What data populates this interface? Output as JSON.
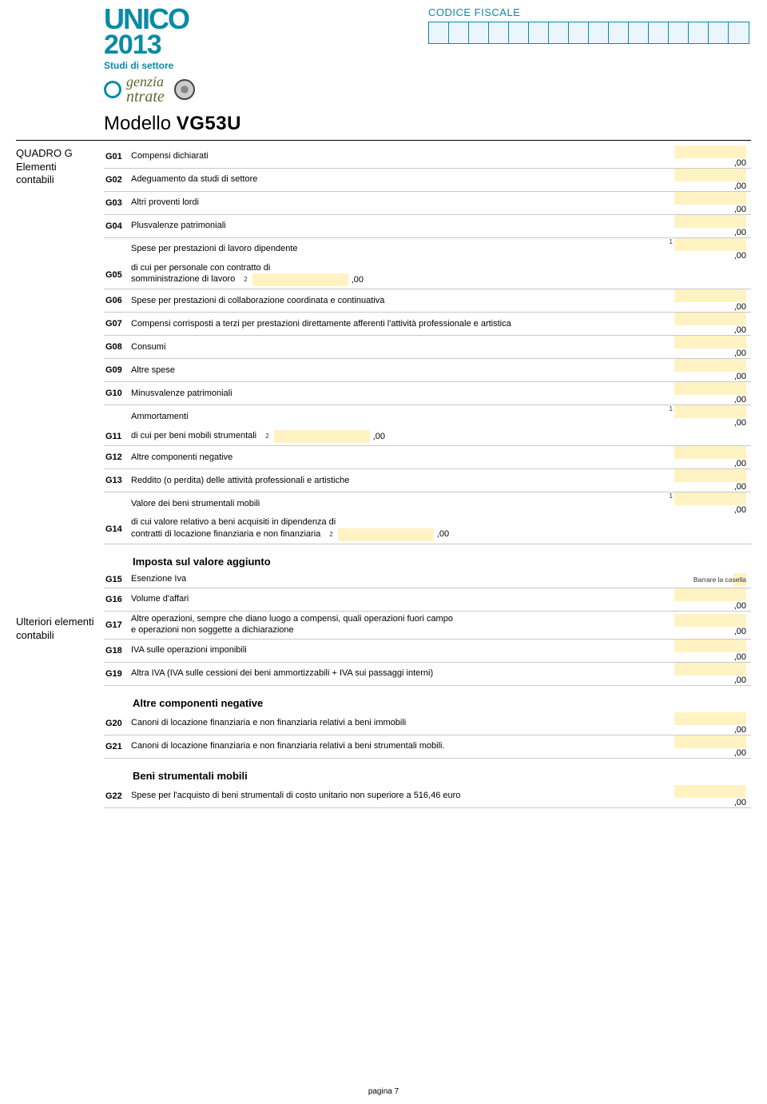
{
  "colors": {
    "brand": "#0b8aa6",
    "field_bg": "#fff3c4",
    "rule": "#c9c9c9",
    "text": "#000000"
  },
  "header": {
    "brand": "UNICO",
    "year": "2013",
    "subtitle": "Studi di settore",
    "agenzia_line1": "genzia",
    "agenzia_line2": "ntrate",
    "codice_label": "CODICE FISCALE",
    "codice_cells": 16,
    "modello_prefix": "Modello",
    "modello_code": "VG53U"
  },
  "sidebar": {
    "sec1_title": "QUADRO G",
    "sec1_sub1": "Elementi",
    "sec1_sub2": "contabili",
    "sec2_line1": "Ulteriori elementi",
    "sec2_line2": "contabili"
  },
  "amount_suffix": ",00",
  "rows": {
    "g01": {
      "code": "G01",
      "desc": "Compensi dichiarati"
    },
    "g02": {
      "code": "G02",
      "desc": "Adeguamento da studi di settore"
    },
    "g03": {
      "code": "G03",
      "desc": "Altri proventi lordi"
    },
    "g04": {
      "code": "G04",
      "desc": "Plusvalenze patrimoniali"
    },
    "g05": {
      "code": "G05",
      "line1": "Spese per prestazioni di lavoro dipendente",
      "line2a": "di cui per personale con contratto di",
      "line2b": "somministrazione di lavoro",
      "sup1": "1",
      "sup2": "2"
    },
    "g06": {
      "code": "G06",
      "desc": "Spese per prestazioni di collaborazione coordinata e continuativa"
    },
    "g07": {
      "code": "G07",
      "desc": "Compensi corrisposti a terzi per prestazioni direttamente afferenti l'attività professionale e artistica"
    },
    "g08": {
      "code": "G08",
      "desc": "Consumi"
    },
    "g09": {
      "code": "G09",
      "desc": "Altre spese"
    },
    "g10": {
      "code": "G10",
      "desc": "Minusvalenze patrimoniali"
    },
    "g11": {
      "code": "G11",
      "line1": "Ammortamenti",
      "line2": "di cui per beni mobili strumentali",
      "sup1": "1",
      "sup2": "2"
    },
    "g12": {
      "code": "G12",
      "desc": "Altre componenti negative"
    },
    "g13": {
      "code": "G13",
      "desc": "Reddito (o perdita) delle attività professionali e artistiche"
    },
    "g14": {
      "code": "G14",
      "line1": "Valore dei beni strumentali mobili",
      "line2a": "di cui valore relativo a beni acquisiti in dipendenza di",
      "line2b": "contratti di locazione finanziaria e non finanziaria",
      "sup1": "1",
      "sup2": "2"
    }
  },
  "sections": {
    "iva_title": "Imposta sul valore aggiunto",
    "g15": {
      "code": "G15",
      "desc": "Esenzione Iva",
      "note": "Barrare la casella"
    },
    "g16": {
      "code": "G16",
      "desc": "Volume d'affari"
    },
    "g17": {
      "code": "G17",
      "line1": "Altre operazioni, sempre che diano luogo a compensi, quali operazioni fuori campo",
      "line2": "e operazioni non soggette a dichiarazione"
    },
    "g18": {
      "code": "G18",
      "desc": "IVA sulle operazioni imponibili"
    },
    "g19": {
      "code": "G19",
      "desc": "Altra IVA (IVA sulle cessioni dei beni ammortizzabili + IVA sui passaggi interni)"
    },
    "neg_title": "Altre componenti negative",
    "g20": {
      "code": "G20",
      "desc": "Canoni di locazione finanziaria e non finanziaria relativi a beni immobili"
    },
    "g21": {
      "code": "G21",
      "desc": "Canoni di locazione finanziaria e non finanziaria relativi a beni strumentali mobili."
    },
    "beni_title": "Beni strumentali mobili",
    "g22": {
      "code": "G22",
      "desc": "Spese per l'acquisto di beni strumentali di costo unitario non superiore a 516,46 euro"
    }
  },
  "footer": {
    "page": "pagina 7"
  }
}
